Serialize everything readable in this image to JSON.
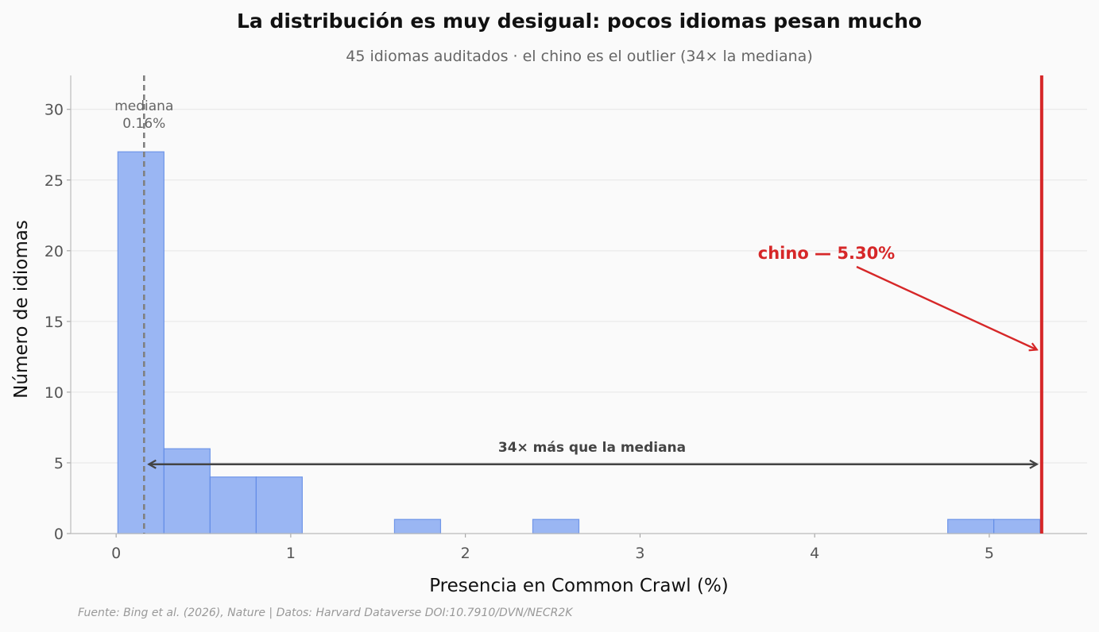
{
  "chart_data": {
    "type": "bar",
    "title": "La distribución es muy desigual: pocos idiomas pesan mucho",
    "subtitle": "45 idiomas auditados · el chino es el outlier (34× la mediana)",
    "xlabel": "Presencia en Common Crawl (%)",
    "ylabel": "Número de idiomas",
    "xlim": [
      -0.26,
      5.56
    ],
    "ylim": [
      0,
      32.4
    ],
    "xticks": [
      "0",
      "1",
      "2",
      "3",
      "4",
      "5"
    ],
    "yticks": [
      "0",
      "5",
      "10",
      "15",
      "20",
      "25",
      "30"
    ],
    "bin_width": 0.264,
    "bins": [
      {
        "x0": 0.01,
        "count": 27
      },
      {
        "x0": 0.274,
        "count": 6
      },
      {
        "x0": 0.538,
        "count": 4
      },
      {
        "x0": 0.802,
        "count": 4
      },
      {
        "x0": 1.594,
        "count": 1
      },
      {
        "x0": 2.386,
        "count": 1
      },
      {
        "x0": 4.762,
        "count": 1
      },
      {
        "x0": 5.026,
        "count": 1
      }
    ],
    "grid": true,
    "median": {
      "value": 0.16,
      "label_line1": "mediana",
      "label_line2": "0.16%"
    },
    "outlier": {
      "value": 5.3,
      "label": "chino — 5.30%",
      "arrow_target_y": 13
    },
    "ratio_arrow": {
      "y": 4.9,
      "label": "34× más que la mediana"
    },
    "colors": {
      "bar_fill": "#9ab6f3",
      "bar_edge": "#5b87e5",
      "outlier": "#d62728",
      "median": "#808080",
      "annotation": "#444444"
    }
  },
  "source": "Fuente: Bing et al. (2026), Nature | Datos: Harvard Dataverse DOI:10.7910/DVN/NECR2K"
}
